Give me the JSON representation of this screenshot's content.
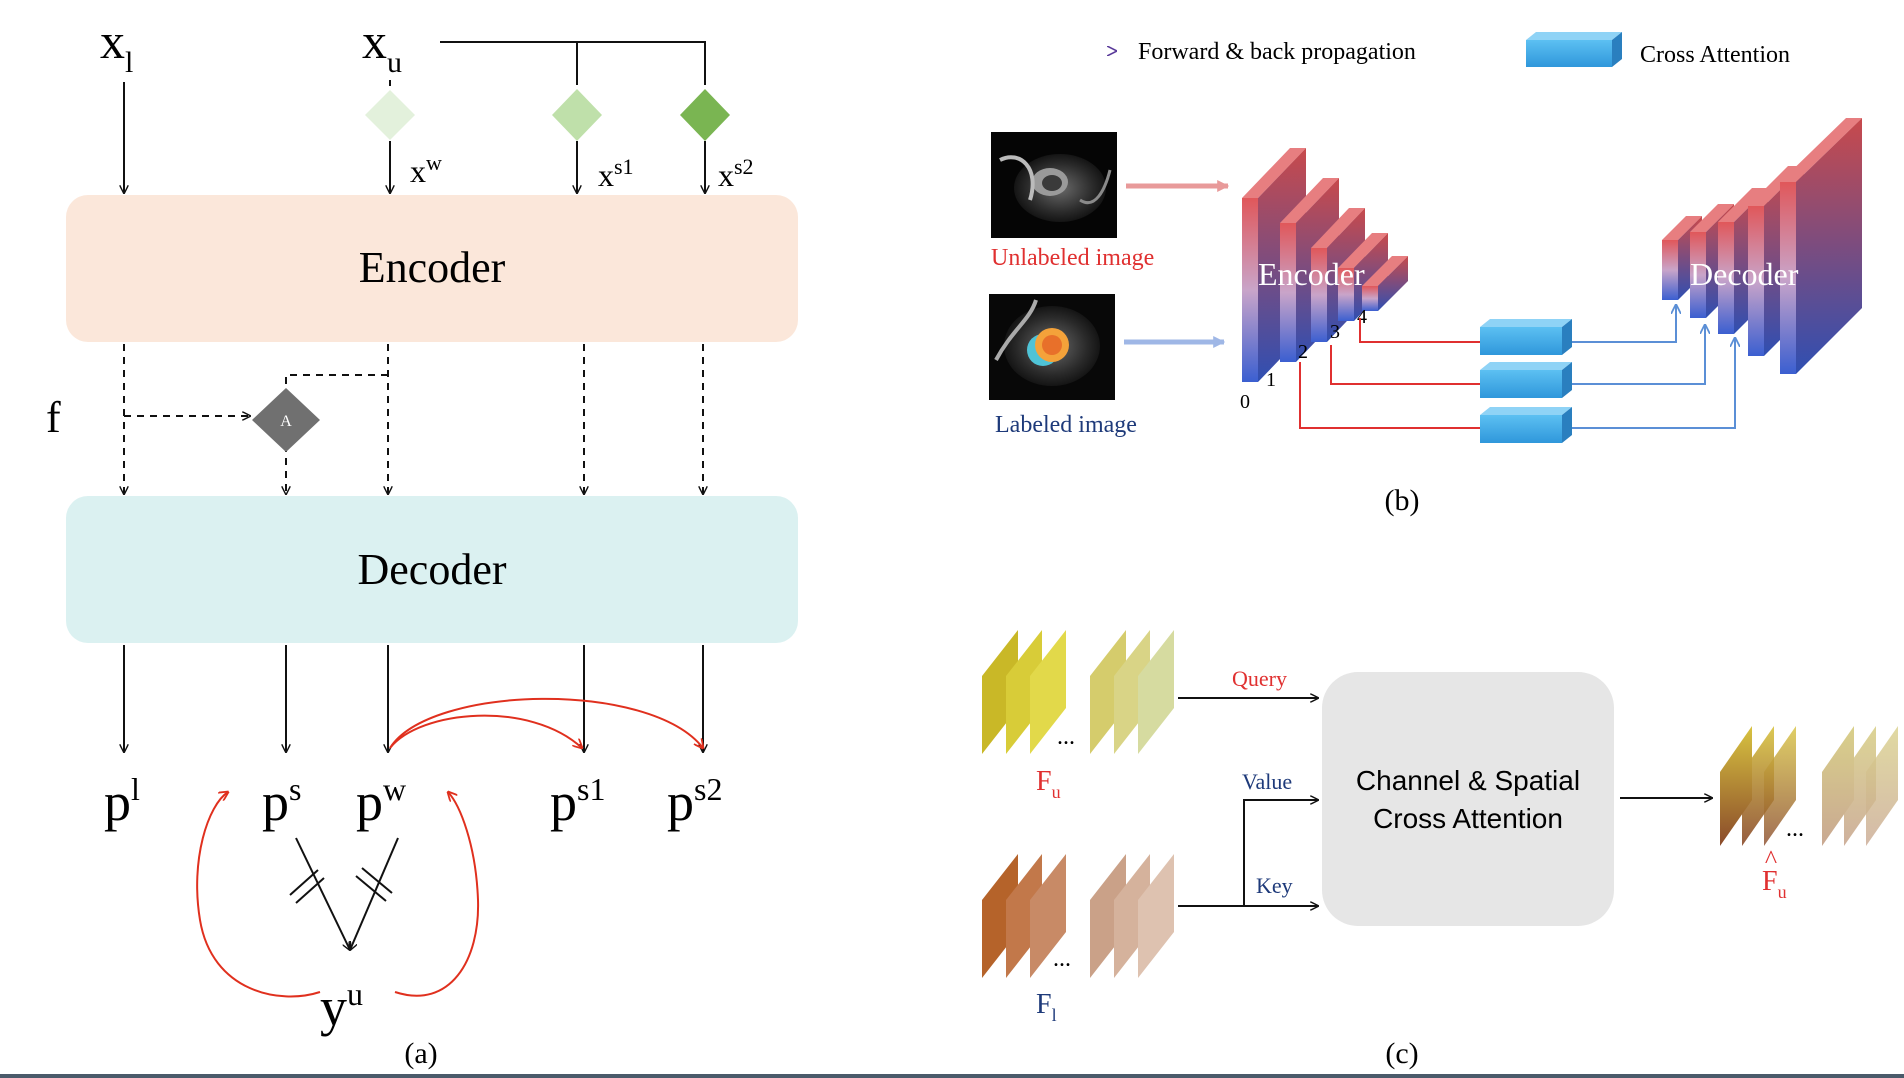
{
  "panel_a": {
    "inputs": {
      "xl": "x",
      "xl_sub": "l",
      "xu": "x",
      "xu_sub": "u"
    },
    "aug": {
      "xw": "x",
      "xw_sup": "w",
      "xs1": "x",
      "xs1_sup": "s1",
      "xs2": "x",
      "xs2_sup": "s2"
    },
    "encoder_label": "Encoder",
    "decoder_label": "Decoder",
    "f_label": "f",
    "attn_node_label": "A",
    "outputs": {
      "pl": "p",
      "pl_sup": "l",
      "ps": "p",
      "ps_sup": "s",
      "pw": "p",
      "pw_sup": "w",
      "ps1": "p",
      "ps1_sup": "s1",
      "ps2": "p",
      "ps2_sup": "s2"
    },
    "pseudo_label": "y",
    "pseudo_label_sup": "u",
    "caption": "(a)",
    "colors": {
      "encoder": "#fbe7da",
      "decoder": "#dbf1f1",
      "red": "#e0301e"
    }
  },
  "panel_b": {
    "legend_arrow_label": "Forward & back propagation",
    "legend_box_label": "Cross Attention",
    "unlabeled_label": "Unlabeled image",
    "labeled_label": "Labeled image",
    "encoder_label": "Encoder",
    "decoder_label": "Decoder",
    "level_labels": [
      "0",
      "1",
      "2",
      "3",
      "4"
    ],
    "caption": "(b)",
    "colors": {
      "attn_box": "#3fa9e8",
      "red_text": "#e03030",
      "blue_text": "#1e3a7a"
    }
  },
  "panel_c": {
    "query_label": "Query",
    "value_label": "Value",
    "key_label": "Key",
    "attention_line1": "Channel & Spatial",
    "attention_line2": "Cross  Attention",
    "fu": "F",
    "fu_sub": "u",
    "fl": "F",
    "fl_sub": "l",
    "fu_hat": "F",
    "fu_hat_sub": "u",
    "fu_hat_accent": "^",
    "ellipsis": "...",
    "caption": "(c)",
    "colors": {
      "block": "#e6e6e6",
      "red_text": "#e03030",
      "blue_text": "#1e3a7a"
    }
  }
}
